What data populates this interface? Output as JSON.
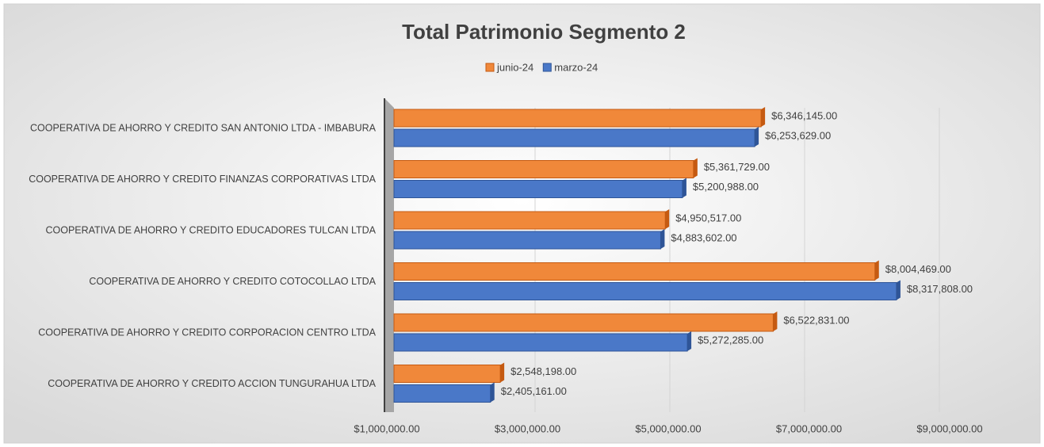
{
  "chart_data": {
    "type": "bar",
    "orientation": "horizontal",
    "title": "Total Patrimonio Segmento 2",
    "categories": [
      "COOPERATIVA DE AHORRO Y CREDITO SAN ANTONIO LTDA - IMBABURA",
      "COOPERATIVA DE AHORRO Y CREDITO FINANZAS CORPORATIVAS LTDA",
      "COOPERATIVA DE AHORRO Y CREDITO EDUCADORES TULCAN LTDA",
      "COOPERATIVA DE AHORRO Y CREDITO COTOCOLLAO LTDA",
      "COOPERATIVA DE AHORRO Y CREDITO CORPORACION CENTRO LTDA",
      "COOPERATIVA DE AHORRO Y CREDITO ACCION TUNGURAHUA LTDA"
    ],
    "series": [
      {
        "name": "junio-24",
        "color": "#f0883a",
        "values": [
          6346145,
          5361729,
          4950517,
          8004469,
          6522831,
          2548198
        ],
        "value_labels": [
          "$6,346,145.00",
          "$5,361,729.00",
          "$4,950,517.00",
          "$8,004,469.00",
          "$6,522,831.00",
          "$2,548,198.00"
        ]
      },
      {
        "name": "marzo-24",
        "color": "#4a78c8",
        "values": [
          6253629,
          5200988,
          4883602,
          8317808,
          5272285,
          2405161
        ],
        "value_labels": [
          "$6,253,629.00",
          "$5,200,988.00",
          "$4,883,602.00",
          "$8,317,808.00",
          "$5,272,285.00",
          "$2,405,161.00"
        ]
      }
    ],
    "xlim": [
      1000000,
      9000000
    ],
    "xticks": [
      {
        "value": 1000000,
        "label": "$1,000,000.00"
      },
      {
        "value": 3000000,
        "label": "$3,000,000.00"
      },
      {
        "value": 5000000,
        "label": "$5,000,000.00"
      },
      {
        "value": 7000000,
        "label": "$7,000,000.00"
      },
      {
        "value": 9000000,
        "label": "$9,000,000.00"
      }
    ],
    "grid": true,
    "legend": "top"
  }
}
